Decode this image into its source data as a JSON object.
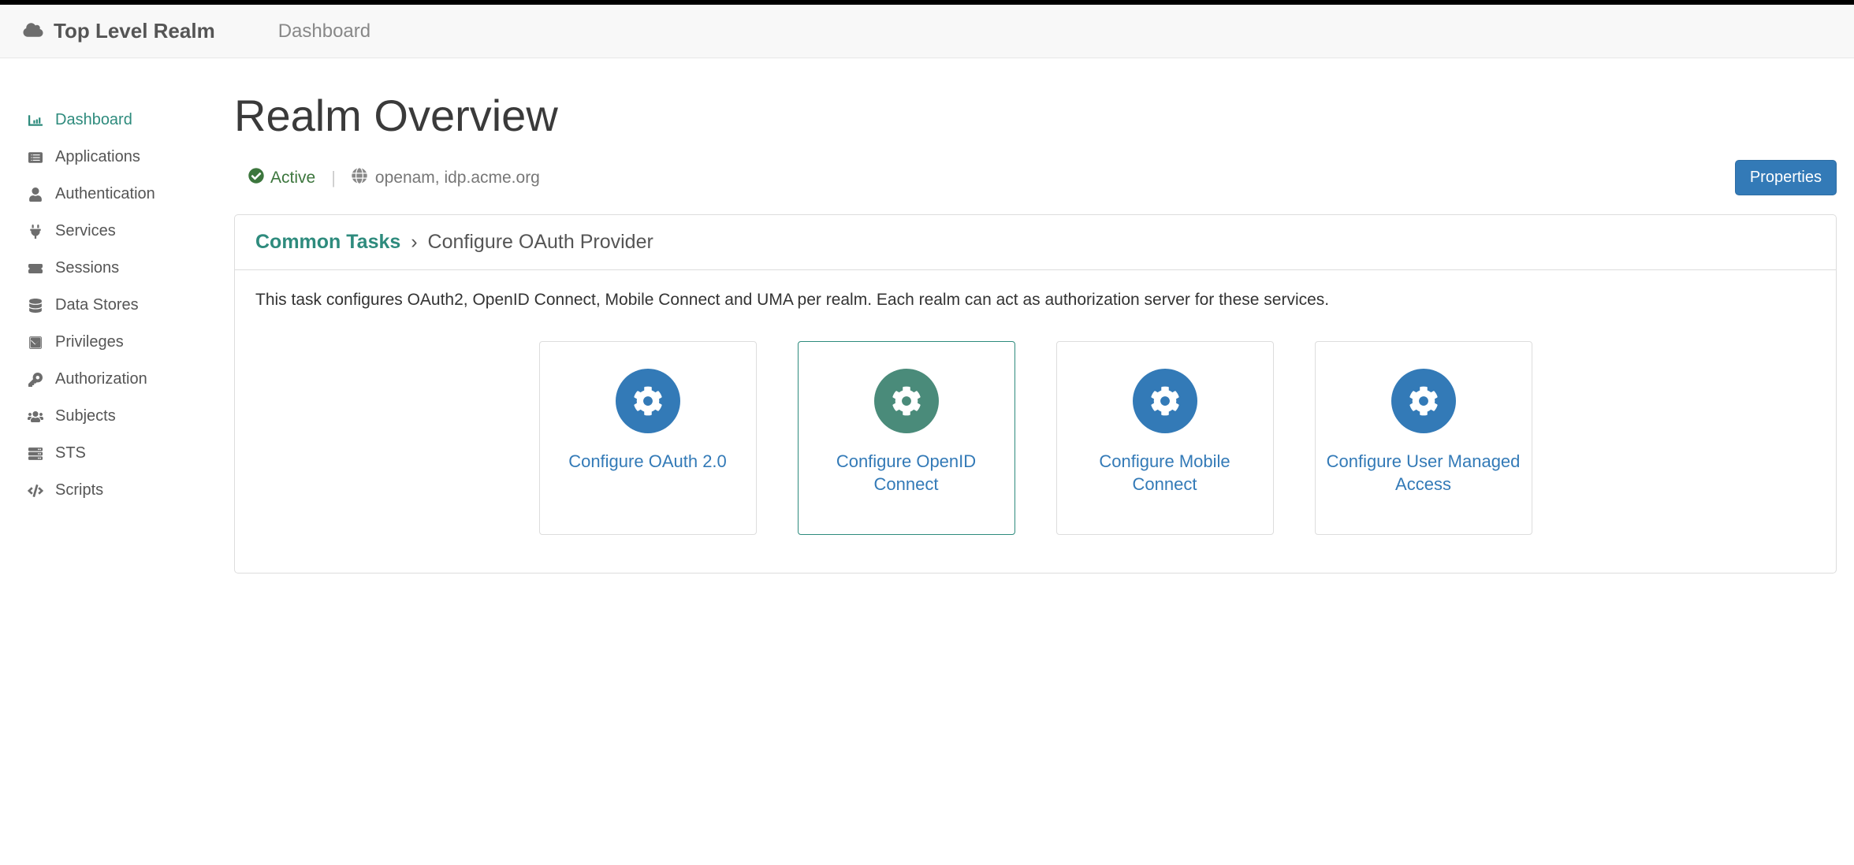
{
  "topbar": {
    "realm_title": "Top Level Realm",
    "breadcrumb": "Dashboard"
  },
  "sidebar": {
    "items": [
      {
        "label": "Dashboard",
        "icon": "dashboard",
        "active": true
      },
      {
        "label": "Applications",
        "icon": "list",
        "active": false
      },
      {
        "label": "Authentication",
        "icon": "user",
        "active": false
      },
      {
        "label": "Services",
        "icon": "plug",
        "active": false
      },
      {
        "label": "Sessions",
        "icon": "ticket",
        "active": false
      },
      {
        "label": "Data Stores",
        "icon": "database",
        "active": false
      },
      {
        "label": "Privileges",
        "icon": "check-square",
        "active": false
      },
      {
        "label": "Authorization",
        "icon": "key",
        "active": false
      },
      {
        "label": "Subjects",
        "icon": "users",
        "active": false
      },
      {
        "label": "STS",
        "icon": "server",
        "active": false
      },
      {
        "label": "Scripts",
        "icon": "code",
        "active": false
      }
    ]
  },
  "main": {
    "page_title": "Realm Overview",
    "status": {
      "active_label": "Active",
      "domains": "openam, idp.acme.org"
    },
    "properties_button": "Properties",
    "panel": {
      "breadcrumb_root": "Common Tasks",
      "breadcrumb_current": "Configure OAuth Provider",
      "description": "This task configures OAuth2, OpenID Connect, Mobile Connect and UMA per realm. Each realm can act as authorization server for these services.",
      "cards": [
        {
          "label": "Configure OAuth 2.0",
          "highlight": false
        },
        {
          "label": "Configure OpenID Connect",
          "highlight": true
        },
        {
          "label": "Configure Mobile Connect",
          "highlight": false
        },
        {
          "label": "Configure User Managed Access",
          "highlight": false
        }
      ]
    }
  },
  "colors": {
    "accent_teal": "#2e8b7d",
    "primary_blue": "#337ab7",
    "card_highlight_bg": "#4a8b7a",
    "success_green": "#3c763d",
    "border": "#dddddd",
    "text_muted": "#777777"
  }
}
